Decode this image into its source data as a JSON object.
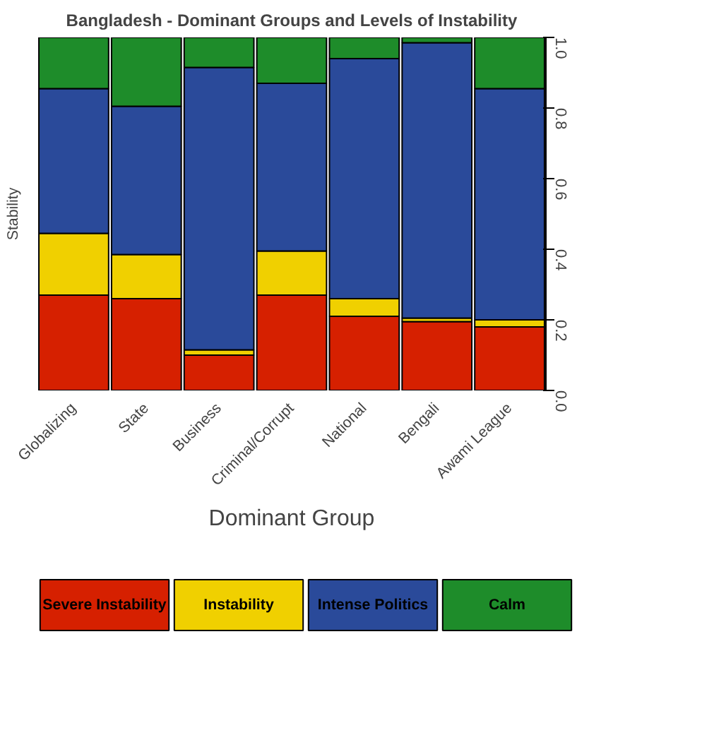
{
  "chart_data": {
    "type": "bar",
    "stacked": true,
    "title": "Bangladesh - Dominant Groups and Levels of Instability",
    "xlabel": "Dominant Group",
    "ylabel": "Stability",
    "categories": [
      "Globalizing",
      "State",
      "Business",
      "Criminal/Corrupt",
      "National",
      "Bengali",
      "Awami League"
    ],
    "series": [
      {
        "name": "Severe Instability",
        "color": "#d62000",
        "values": [
          0.27,
          0.26,
          0.1,
          0.27,
          0.21,
          0.195,
          0.18
        ]
      },
      {
        "name": "Instability",
        "color": "#f0d000",
        "values": [
          0.175,
          0.125,
          0.015,
          0.125,
          0.05,
          0.01,
          0.02
        ]
      },
      {
        "name": "Intense Politics",
        "color": "#2a4a9a",
        "values": [
          0.41,
          0.42,
          0.8,
          0.475,
          0.68,
          0.78,
          0.655
        ]
      },
      {
        "name": "Calm",
        "color": "#1e8c2a",
        "values": [
          0.145,
          0.195,
          0.085,
          0.13,
          0.06,
          0.015,
          0.145
        ]
      }
    ],
    "ylim": [
      0,
      1
    ],
    "yticks": [
      {
        "value": 0,
        "label": "0.0"
      },
      0.2,
      0.4,
      0.6,
      0.8,
      {
        "value": 1,
        "label": "1.0"
      }
    ],
    "grid": false,
    "legend": "bottom"
  }
}
